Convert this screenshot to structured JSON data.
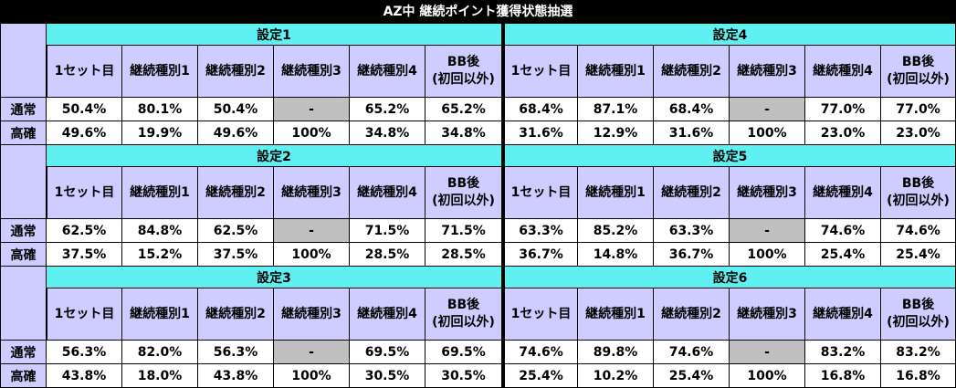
{
  "title": "AZ中 継続ポイント獲得状態抽選",
  "row_labels": [
    "通常",
    "高確"
  ],
  "columns": [
    "1セット目",
    "継続種別1",
    "継続種別2",
    "継続種別3",
    "継続種別4",
    "BB後",
    "(初回以外)"
  ],
  "blocks": [
    {
      "left": {
        "setting": "設定1",
        "normal": [
          "50.4%",
          "80.1%",
          "50.4%",
          "-",
          "65.2%",
          "65.2%"
        ],
        "high": [
          "49.6%",
          "19.9%",
          "49.6%",
          "100%",
          "34.8%",
          "34.8%"
        ]
      },
      "right": {
        "setting": "設定4",
        "normal": [
          "68.4%",
          "87.1%",
          "68.4%",
          "-",
          "77.0%",
          "77.0%"
        ],
        "high": [
          "31.6%",
          "12.9%",
          "31.6%",
          "100%",
          "23.0%",
          "23.0%"
        ]
      }
    },
    {
      "left": {
        "setting": "設定2",
        "normal": [
          "62.5%",
          "84.8%",
          "62.5%",
          "-",
          "71.5%",
          "71.5%"
        ],
        "high": [
          "37.5%",
          "15.2%",
          "37.5%",
          "100%",
          "28.5%",
          "28.5%"
        ]
      },
      "right": {
        "setting": "設定5",
        "normal": [
          "63.3%",
          "85.2%",
          "63.3%",
          "-",
          "74.6%",
          "74.6%"
        ],
        "high": [
          "36.7%",
          "14.8%",
          "36.7%",
          "100%",
          "25.4%",
          "25.4%"
        ]
      }
    },
    {
      "left": {
        "setting": "設定3",
        "normal": [
          "56.3%",
          "82.0%",
          "56.3%",
          "-",
          "69.5%",
          "69.5%"
        ],
        "high": [
          "43.8%",
          "18.0%",
          "43.8%",
          "100%",
          "30.5%",
          "30.5%"
        ]
      },
      "right": {
        "setting": "設定6",
        "normal": [
          "74.6%",
          "89.8%",
          "74.6%",
          "-",
          "83.2%",
          "83.2%"
        ],
        "high": [
          "25.4%",
          "10.2%",
          "25.4%",
          "100%",
          "16.8%",
          "16.8%"
        ]
      }
    }
  ]
}
